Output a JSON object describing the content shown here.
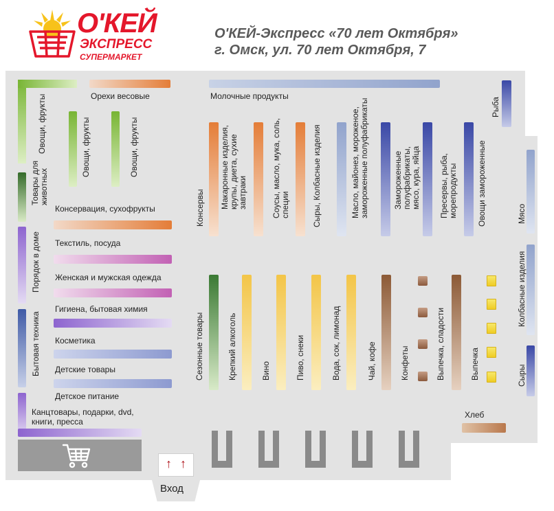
{
  "header": {
    "logo": {
      "brand": "О'КЕЙ",
      "line2": "ЭКСПРЕСС",
      "line3": "СУПЕРМАРКЕТ"
    },
    "store_name": "О'КЕЙ-Экспресс «70 лет Октября»",
    "address": "г. Омск, ул. 70 лет Октября, 7"
  },
  "sections": {
    "vegetables_fruits_wall": "Овощи, фрукты",
    "nuts": "Орехи весовые",
    "vegetables_fruits_1": "Овощи, фрукты",
    "vegetables_fruits_2": "Овощи, фрукты",
    "dairy": "Молочные продукты",
    "fish": "Рыба",
    "pet_goods": "Товары для животных",
    "canned_dried": "Консервация, сухофрукты",
    "textile": "Текстиль, посуда",
    "household": "Порядок в доме",
    "clothing": "Женская и мужская одежда",
    "hygiene": "Гигиена, бытовая химия",
    "appliances": "Бытовая техника",
    "cosmetics": "Косметика",
    "kids_goods": "Детские товары",
    "baby_food": "Детское питание",
    "stationery": "Канцтовары, подарки, dvd, книги, пресса",
    "canned": "Консервы",
    "pasta": "Макаронные изделия, крупы, диета, сухие завтраки",
    "sauces": "Соусы, масло, мука, соль, специи",
    "cheese_sausage": "Сыры, Колбасные изделия",
    "butter_frozen": "Масло, майонез, мороженое, замороженные полуфабрикаты",
    "frozen_meat": "Замороженные полуфабрикаты, мясо, кура, яйца",
    "preserves": "Пресервы, рыба, морепродукты",
    "frozen_vegetables": "Овощи замороженные",
    "meat": "Мясо",
    "seasonal": "Сезонные товары",
    "spirits": "Крепкий алкоголь",
    "wine": "Вино",
    "beer": "Пиво, снеки",
    "water": "Вода, сок, лимонад",
    "tea": "Чай, кофе",
    "candy": "Конфеты",
    "pastry": "Выпечка, сладости",
    "bakery": "Выпечка",
    "sausage": "Колбасные изделия",
    "cheese": "Сыры",
    "bread": "Хлеб"
  },
  "entrance": {
    "label": "Вход",
    "arrow": "↑"
  },
  "icons": {
    "cart": "shopping-cart-icon",
    "logo_basket": "basket-icon"
  },
  "colors": {
    "brand_red": "#e4172b",
    "brand_yellow": "#f7c21a",
    "floor": "#e3e3e3",
    "checkout": "#8a8a8a"
  }
}
